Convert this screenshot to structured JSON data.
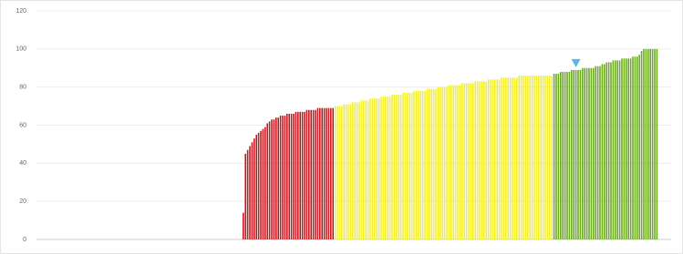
{
  "chart_data": {
    "type": "bar",
    "xlim": [
      0,
      290
    ],
    "ylim": [
      0,
      120
    ],
    "yticks": [
      0,
      20,
      40,
      60,
      80,
      100,
      120
    ],
    "grid": true,
    "series": [
      {
        "color": "#c8171e",
        "x": [
          94,
          95,
          96,
          97,
          98,
          99,
          100,
          101,
          102,
          103,
          104,
          105,
          106,
          107,
          108,
          109,
          110,
          111,
          112,
          113,
          114,
          115,
          116,
          117,
          118,
          119,
          120,
          121,
          122,
          123,
          124,
          125,
          126,
          127,
          128,
          129,
          130,
          131,
          132,
          133,
          134,
          135
        ],
        "values": [
          14,
          45,
          47,
          49,
          51,
          53,
          55,
          56,
          57,
          58,
          59,
          61,
          62,
          63,
          63,
          64,
          64,
          65,
          65,
          65,
          66,
          66,
          66,
          66,
          67,
          67,
          67,
          67,
          67,
          68,
          68,
          68,
          68,
          68,
          69,
          69,
          69,
          69,
          69,
          69,
          69,
          69
        ]
      },
      {
        "color": "#f4ef2e",
        "x": [
          136,
          137,
          138,
          139,
          140,
          141,
          142,
          143,
          144,
          145,
          146,
          147,
          148,
          149,
          150,
          151,
          152,
          153,
          154,
          155,
          156,
          157,
          158,
          159,
          160,
          161,
          162,
          163,
          164,
          165,
          166,
          167,
          168,
          169,
          170,
          171,
          172,
          173,
          174,
          175,
          176,
          177,
          178,
          179,
          180,
          181,
          182,
          183,
          184,
          185,
          186,
          187,
          188,
          189,
          190,
          191,
          192,
          193,
          194,
          195,
          196,
          197,
          198,
          199,
          200,
          201,
          202,
          203,
          204,
          205,
          206,
          207,
          208,
          209,
          210,
          211,
          212,
          213,
          214,
          215,
          216,
          217,
          218,
          219,
          220,
          221,
          222,
          223,
          224,
          225,
          226,
          227,
          228,
          229,
          230,
          231,
          232,
          233,
          234,
          235
        ],
        "values": [
          70,
          70,
          70,
          70,
          71,
          71,
          71,
          71,
          72,
          72,
          72,
          72,
          73,
          73,
          73,
          73,
          74,
          74,
          74,
          74,
          74,
          75,
          75,
          75,
          75,
          75,
          76,
          76,
          76,
          76,
          76,
          77,
          77,
          77,
          77,
          77,
          78,
          78,
          78,
          78,
          78,
          78,
          79,
          79,
          79,
          79,
          79,
          80,
          80,
          80,
          80,
          80,
          81,
          81,
          81,
          81,
          81,
          81,
          82,
          82,
          82,
          82,
          82,
          82,
          83,
          83,
          83,
          83,
          83,
          83,
          84,
          84,
          84,
          84,
          84,
          84,
          85,
          85,
          85,
          85,
          85,
          85,
          85,
          85,
          86,
          86,
          86,
          86,
          86,
          86,
          86,
          86,
          86,
          86,
          86,
          86,
          86,
          86,
          86,
          86
        ]
      },
      {
        "color": "#6cab1f",
        "x": [
          236,
          237,
          238,
          239,
          240,
          241,
          242,
          243,
          244,
          245,
          246,
          247,
          248,
          249,
          250,
          251,
          252,
          253,
          254,
          255,
          256,
          257,
          258,
          259,
          260,
          261,
          262,
          263,
          264,
          265,
          266,
          267,
          268,
          269,
          270,
          271,
          272,
          273,
          274,
          275,
          276,
          277,
          278,
          279,
          280,
          281,
          282,
          283
        ],
        "values": [
          87,
          87,
          87,
          88,
          88,
          88,
          88,
          88,
          89,
          89,
          89,
          89,
          89,
          90,
          90,
          90,
          90,
          90,
          90,
          91,
          91,
          91,
          92,
          92,
          93,
          93,
          93,
          94,
          94,
          94,
          94,
          95,
          95,
          95,
          95,
          95,
          96,
          96,
          96,
          97,
          99,
          100,
          100,
          100,
          100,
          100,
          100,
          100
        ]
      }
    ],
    "marker": {
      "x": 246,
      "value": 89,
      "color": "#5bb5e0"
    }
  }
}
